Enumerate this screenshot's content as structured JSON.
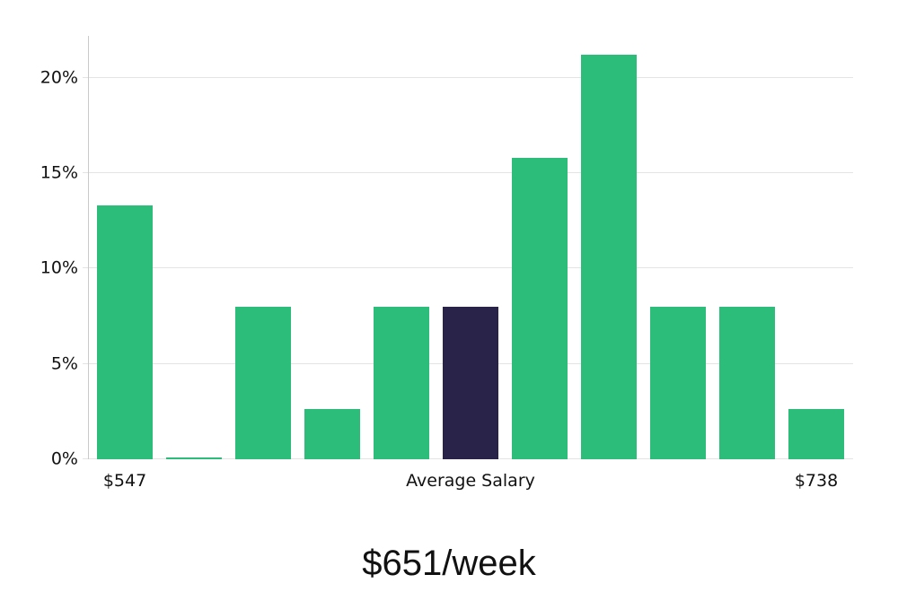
{
  "title": "$651/week",
  "chart_data": {
    "type": "bar",
    "title": "$651/week",
    "xlabel": "",
    "ylabel": "",
    "values": [
      13.3,
      0.1,
      8.0,
      2.65,
      8.0,
      8.0,
      15.8,
      21.2,
      8.0,
      8.0,
      2.65
    ],
    "highlight_index": 5,
    "highlight_label": "Average Salary",
    "y_ticks": [
      "0%",
      "5%",
      "10%",
      "15%",
      "20%"
    ],
    "y_tick_values": [
      0,
      5,
      10,
      15,
      20
    ],
    "ylim": [
      0,
      22.2
    ],
    "grid": "on",
    "legend": "none",
    "x_labels": [
      {
        "text": "$547",
        "bar_index": 0
      },
      {
        "text": "Average Salary",
        "bar_index": 5
      },
      {
        "text": "$738",
        "bar_index": 10
      }
    ],
    "colors": {
      "bar": "#2cbd7b",
      "highlight": "#292349",
      "grid": "#e4e4e4",
      "axis": "#c9c9c9",
      "text": "#111111"
    }
  }
}
